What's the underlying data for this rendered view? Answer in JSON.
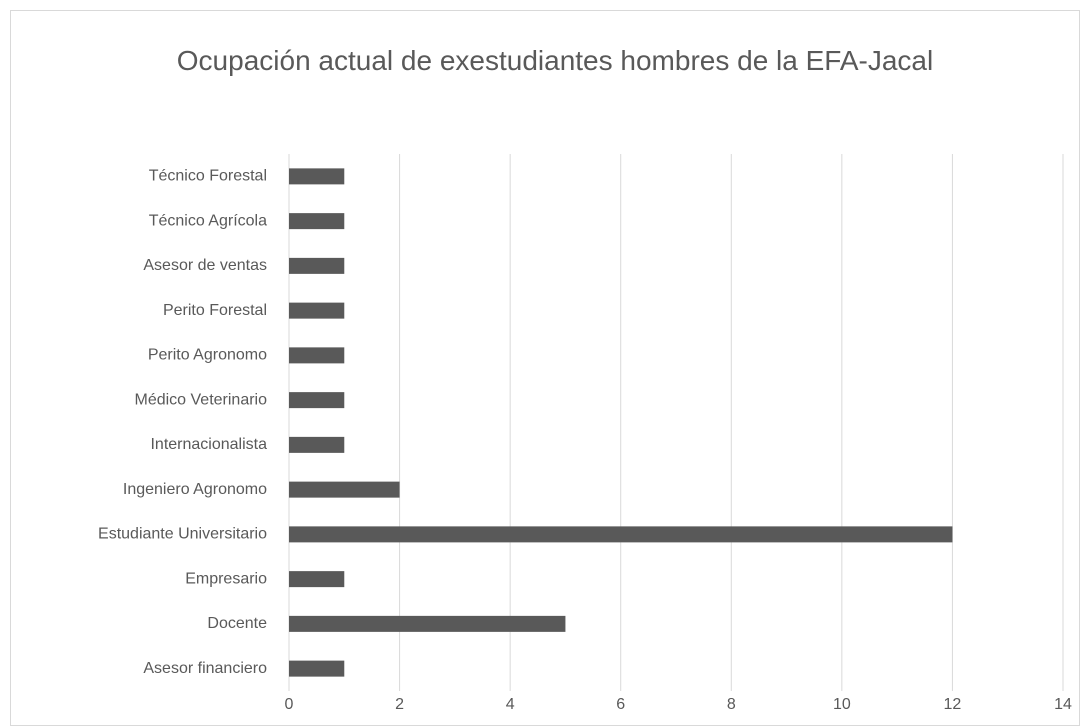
{
  "chart_data": {
    "type": "barh",
    "title": "Ocupación actual de exestudiantes hombres de la EFA-Jacal",
    "categories": [
      "Técnico Forestal",
      "Técnico Agrícola",
      "Asesor de ventas",
      "Perito Forestal",
      "Perito Agronomo",
      "Médico Veterinario",
      "Internacionalista",
      "Ingeniero Agronomo",
      "Estudiante Universitario",
      "Empresario",
      "Docente",
      "Asesor financiero"
    ],
    "values": [
      1,
      1,
      1,
      1,
      1,
      1,
      1,
      2,
      12,
      1,
      5,
      1
    ],
    "color": "#595959",
    "xlim": [
      0,
      14
    ],
    "xticks": [
      0,
      2,
      4,
      6,
      8,
      10,
      12,
      14
    ],
    "grid": true
  }
}
